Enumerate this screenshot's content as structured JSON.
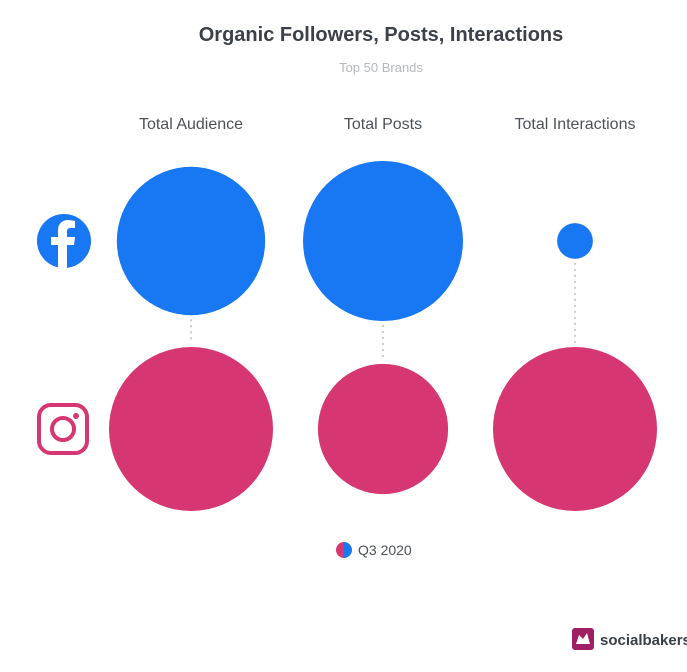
{
  "chart_data": {
    "type": "bubble",
    "title": "Organic Followers, Posts, Interactions",
    "subtitle": "Top 50 Brands",
    "categories": [
      "Total Audience",
      "Total Posts",
      "Total Interactions"
    ],
    "series": [
      {
        "platform": "facebook",
        "icon": "facebook-icon",
        "color": "#1877f2",
        "values": [
          0.86,
          1.0,
          0.05
        ]
      },
      {
        "platform": "instagram",
        "icon": "instagram-icon",
        "color": "#d63672",
        "values": [
          1.0,
          0.63,
          1.0
        ]
      }
    ],
    "legend": {
      "label": "Q3 2020",
      "position": "bottom-center",
      "colors": [
        "#d63672",
        "#1877f2"
      ]
    },
    "value_encoding": "relative bubble area within each row (largest = 1.0)",
    "grid": false
  },
  "branding": {
    "name": "socialbakers",
    "color": "#9e1f63"
  }
}
